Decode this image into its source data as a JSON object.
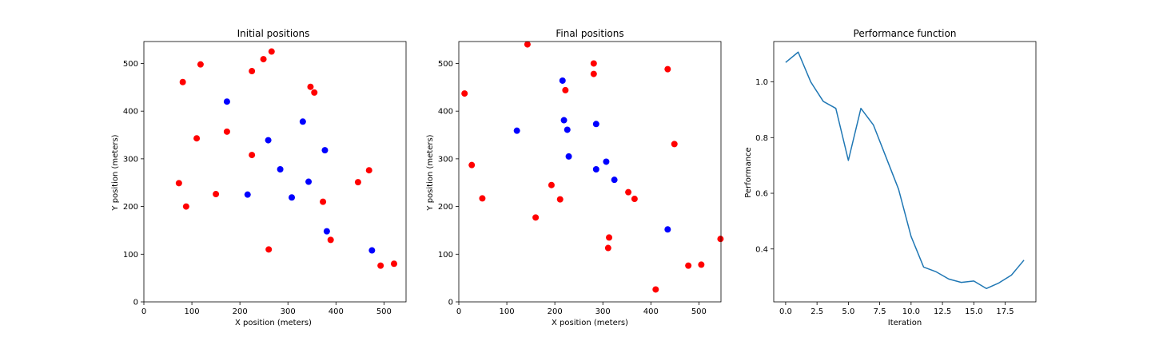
{
  "colors": {
    "red": "#ff0000",
    "blue": "#0000ff",
    "line": "#1f77b4",
    "axes": "#000000"
  },
  "chart_data": [
    {
      "type": "scatter",
      "title": "Initial positions",
      "xlabel": "X position (meters)",
      "ylabel": "Y position (meters)",
      "xlim": [
        0,
        546
      ],
      "ylim": [
        0,
        546
      ],
      "xticks": [
        0,
        100,
        200,
        300,
        400,
        500
      ],
      "yticks": [
        0,
        100,
        200,
        300,
        400,
        500
      ],
      "grid": false,
      "series": [
        {
          "color": "red",
          "points": [
            [
              118,
              498
            ],
            [
              81,
              461
            ],
            [
              225,
              484
            ],
            [
              249,
              509
            ],
            [
              266,
              525
            ],
            [
              347,
              451
            ],
            [
              355,
              439
            ],
            [
              173,
              357
            ],
            [
              110,
              343
            ],
            [
              225,
              308
            ],
            [
              73,
              249
            ],
            [
              150,
              226
            ],
            [
              88,
              200
            ],
            [
              373,
              210
            ],
            [
              446,
              251
            ],
            [
              469,
              276
            ],
            [
              389,
              130
            ],
            [
              260,
              110
            ],
            [
              493,
              76
            ],
            [
              521,
              80
            ]
          ]
        },
        {
          "color": "blue",
          "points": [
            [
              173,
              420
            ],
            [
              331,
              378
            ],
            [
              259,
              339
            ],
            [
              377,
              318
            ],
            [
              284,
              278
            ],
            [
              343,
              252
            ],
            [
              216,
              225
            ],
            [
              308,
              219
            ],
            [
              381,
              148
            ],
            [
              475,
              108
            ]
          ]
        }
      ]
    },
    {
      "type": "scatter",
      "title": "Final positions",
      "xlabel": "X position (meters)",
      "ylabel": "Y position (meters)",
      "xlim": [
        0,
        546
      ],
      "ylim": [
        0,
        546
      ],
      "xticks": [
        0,
        100,
        200,
        300,
        400,
        500
      ],
      "yticks": [
        0,
        100,
        200,
        300,
        400,
        500
      ],
      "grid": false,
      "series": [
        {
          "color": "red",
          "points": [
            [
              143,
              540
            ],
            [
              281,
              500
            ],
            [
              281,
              478
            ],
            [
              435,
              488
            ],
            [
              222,
              444
            ],
            [
              12,
              437
            ],
            [
              449,
              331
            ],
            [
              27,
              287
            ],
            [
              193,
              245
            ],
            [
              211,
              215
            ],
            [
              49,
              217
            ],
            [
              160,
              177
            ],
            [
              353,
              230
            ],
            [
              366,
              216
            ],
            [
              313,
              135
            ],
            [
              311,
              113
            ],
            [
              410,
              26
            ],
            [
              478,
              76
            ],
            [
              505,
              78
            ],
            [
              545,
              132
            ]
          ]
        },
        {
          "color": "blue",
          "points": [
            [
              216,
              464
            ],
            [
              219,
              381
            ],
            [
              286,
              373
            ],
            [
              226,
              361
            ],
            [
              121,
              359
            ],
            [
              229,
              305
            ],
            [
              307,
              294
            ],
            [
              286,
              278
            ],
            [
              324,
              256
            ],
            [
              435,
              152
            ]
          ]
        }
      ]
    },
    {
      "type": "line",
      "title": "Performance function",
      "xlabel": "Iteration",
      "ylabel": "Performance",
      "xlim": [
        -0.95,
        19.95
      ],
      "ylim": [
        0.21,
        1.145
      ],
      "xticks": [
        "0.0",
        "2.5",
        "5.0",
        "7.5",
        "10.0",
        "12.5",
        "15.0",
        "17.5"
      ],
      "yticks": [
        "0.4",
        "0.6",
        "0.8",
        "1.0"
      ],
      "grid": false,
      "series": [
        {
          "color": "line",
          "x": [
            0,
            1,
            2,
            3,
            4,
            5,
            6,
            7,
            8,
            9,
            10,
            11,
            12,
            13,
            14,
            15,
            16,
            17,
            18,
            19
          ],
          "y": [
            1.07,
            1.107,
            1.0,
            0.93,
            0.905,
            0.718,
            0.905,
            0.845,
            0.73,
            0.615,
            0.445,
            0.335,
            0.318,
            0.292,
            0.28,
            0.285,
            0.258,
            0.278,
            0.306,
            0.36
          ]
        }
      ]
    }
  ]
}
